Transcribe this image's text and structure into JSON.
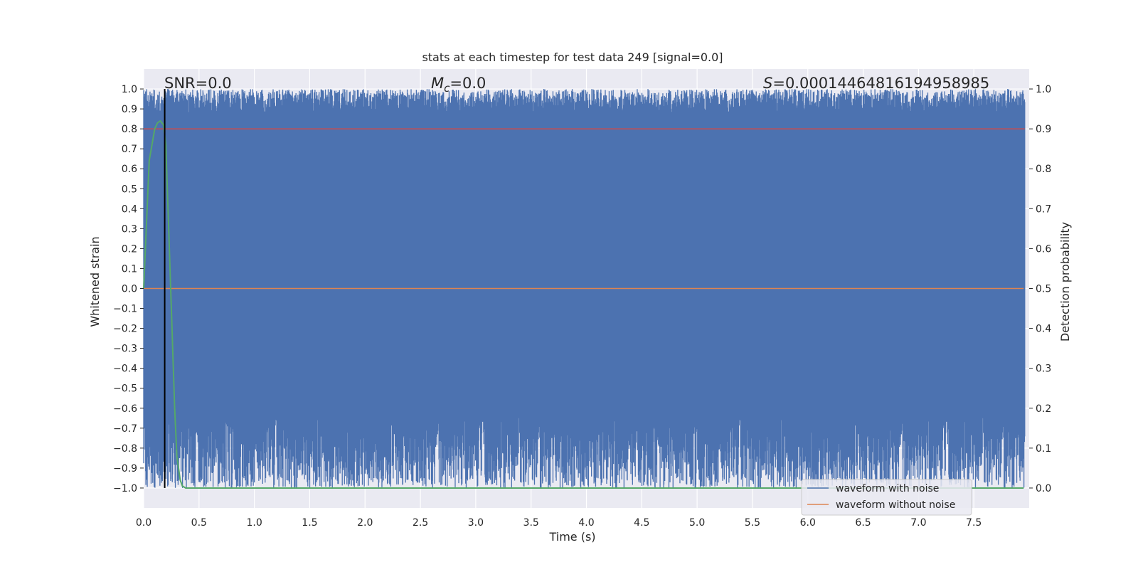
{
  "chart_data": {
    "type": "line",
    "title": "stats at each timestep for test data 249 [signal=0.0]",
    "xlabel": "Time (s)",
    "ylabel": "Whitened strain",
    "ylabel_right": "Detection probability",
    "xlim": [
      0.0,
      8.0
    ],
    "ylim": [
      -1.1,
      1.1
    ],
    "ylim_right": [
      -0.05,
      1.05
    ],
    "x_ticks": [
      0.0,
      0.5,
      1.0,
      1.5,
      2.0,
      2.5,
      3.0,
      3.5,
      4.0,
      4.5,
      5.0,
      5.5,
      6.0,
      6.5,
      7.0,
      7.5
    ],
    "x_tick_labels": [
      "0.0",
      "0.5",
      "1.0",
      "1.5",
      "2.0",
      "2.5",
      "3.0",
      "3.5",
      "4.0",
      "4.5",
      "5.0",
      "5.5",
      "6.0",
      "6.5",
      "7.0",
      "7.5"
    ],
    "y_ticks": [
      1.0,
      0.9,
      0.8,
      0.7,
      0.6,
      0.5,
      0.4,
      0.3,
      0.2,
      0.1,
      0.0,
      -0.1,
      -0.2,
      -0.3,
      -0.4,
      -0.5,
      -0.6,
      -0.7,
      -0.8,
      -0.9,
      -1.0
    ],
    "y_tick_labels": [
      "1.0",
      "0.9",
      "0.8",
      "0.7",
      "0.6",
      "0.5",
      "0.4",
      "0.3",
      "0.2",
      "0.1",
      "0.0",
      "−0.1",
      "−0.2",
      "−0.3",
      "−0.4",
      "−0.5",
      "−0.6",
      "−0.7",
      "−0.8",
      "−0.9",
      "−1.0"
    ],
    "y_right_ticks": [
      1.0,
      0.9,
      0.8,
      0.7,
      0.6,
      0.5,
      0.4,
      0.3,
      0.2,
      0.1,
      0.0
    ],
    "y_right_tick_labels": [
      "1.0",
      "0.9",
      "0.8",
      "0.7",
      "0.6",
      "0.5",
      "0.4",
      "0.3",
      "0.2",
      "0.1",
      "0.0"
    ],
    "grid": true,
    "legend_position": "lower-right",
    "annotations": {
      "snr": "SNR=0.0",
      "mc_symbol": "M",
      "mc_sub": "c",
      "mc_value": "=0.0",
      "s_symbol": "S",
      "s_value": "=0.00014464816194958985"
    },
    "series": [
      {
        "name": "waveform with noise",
        "color": "#4c72b0",
        "axis": "left",
        "description_range": [
          -1.0,
          1.0
        ],
        "sample_rate": 2048
      },
      {
        "name": "waveform without noise",
        "color": "#dd8452",
        "axis": "left",
        "x": [
          0.0,
          7.95
        ],
        "y": [
          0.0,
          0.0
        ]
      },
      {
        "axis": "right",
        "color": "#55a868",
        "x": [
          0.0,
          0.05,
          0.1,
          0.125,
          0.15,
          0.18,
          0.2,
          0.22,
          0.25,
          0.28,
          0.3,
          0.33,
          0.35,
          0.38,
          0.4,
          1.0,
          2.0,
          3.0,
          4.0,
          5.0,
          6.0,
          7.0,
          7.95
        ],
        "y": [
          0.5,
          0.82,
          0.9,
          0.915,
          0.92,
          0.91,
          0.86,
          0.7,
          0.45,
          0.2,
          0.08,
          0.02,
          0.005,
          0.0,
          0.0,
          0.0,
          0.0,
          0.0,
          0.0,
          0.0,
          0.0,
          0.0,
          0.0
        ]
      }
    ],
    "threshold_line": {
      "axis": "right",
      "y": 0.9,
      "color": "#c44e52"
    },
    "marker_line": {
      "x": 0.19,
      "color": "#000000"
    }
  }
}
